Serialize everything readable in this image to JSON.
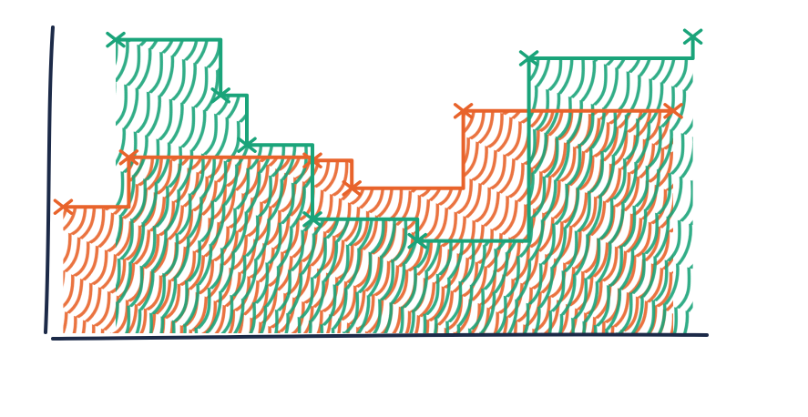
{
  "chart_data": {
    "type": "step",
    "xlim": [
      0,
      10
    ],
    "ylim": [
      0,
      10
    ],
    "series": [
      {
        "color": "#e8632b",
        "x": [
          0.2,
          1.2,
          4.0,
          4.6,
          6.3,
          9.5
        ],
        "values": [
          4.2,
          5.8,
          5.7,
          4.8,
          7.3,
          7.3
        ]
      },
      {
        "color": "#1aa47a",
        "x": [
          1.0,
          2.6,
          3.0,
          4.0,
          5.6,
          7.3,
          9.8
        ],
        "values": [
          9.6,
          7.8,
          6.2,
          3.8,
          3.1,
          9.0,
          9.7
        ]
      }
    ]
  }
}
